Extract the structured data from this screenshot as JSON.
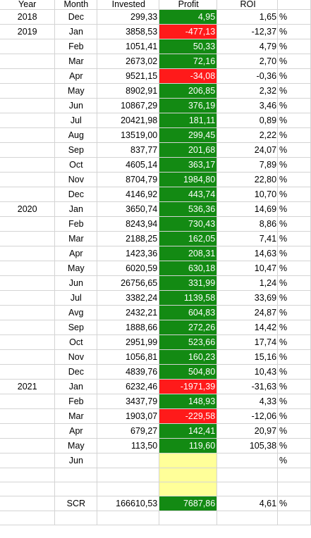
{
  "columns": {
    "year": "Year",
    "month": "Month",
    "invested": "Invested",
    "profit": "Profit",
    "roi": "ROI"
  },
  "colors": {
    "positive": "#138a13",
    "negative": "#ff1a1a",
    "highlight": "#ffff99",
    "grid": "#d4d4d4"
  },
  "rows": [
    {
      "year": "2018",
      "month": "Dec",
      "invested": "299,33",
      "profit": "4,95",
      "roi": "1,65",
      "pct": "%",
      "status": "pos"
    },
    {
      "year": "2019",
      "month": "Jan",
      "invested": "3858,53",
      "profit": "-477,13",
      "roi": "-12,37",
      "pct": "%",
      "status": "neg"
    },
    {
      "year": "",
      "month": "Feb",
      "invested": "1051,41",
      "profit": "50,33",
      "roi": "4,79",
      "pct": "%",
      "status": "pos"
    },
    {
      "year": "",
      "month": "Mar",
      "invested": "2673,02",
      "profit": "72,16",
      "roi": "2,70",
      "pct": "%",
      "status": "pos"
    },
    {
      "year": "",
      "month": "Apr",
      "invested": "9521,15",
      "profit": "-34,08",
      "roi": "-0,36",
      "pct": "%",
      "status": "neg"
    },
    {
      "year": "",
      "month": "May",
      "invested": "8902,91",
      "profit": "206,85",
      "roi": "2,32",
      "pct": "%",
      "status": "pos"
    },
    {
      "year": "",
      "month": "Jun",
      "invested": "10867,29",
      "profit": "376,19",
      "roi": "3,46",
      "pct": "%",
      "status": "pos"
    },
    {
      "year": "",
      "month": "Jul",
      "invested": "20421,98",
      "profit": "181,11",
      "roi": "0,89",
      "pct": "%",
      "status": "pos"
    },
    {
      "year": "",
      "month": "Aug",
      "invested": "13519,00",
      "profit": "299,45",
      "roi": "2,22",
      "pct": "%",
      "status": "pos"
    },
    {
      "year": "",
      "month": "Sep",
      "invested": "837,77",
      "profit": "201,68",
      "roi": "24,07",
      "pct": "%",
      "status": "pos"
    },
    {
      "year": "",
      "month": "Oct",
      "invested": "4605,14",
      "profit": "363,17",
      "roi": "7,89",
      "pct": "%",
      "status": "pos"
    },
    {
      "year": "",
      "month": "Nov",
      "invested": "8704,79",
      "profit": "1984,80",
      "roi": "22,80",
      "pct": "%",
      "status": "pos"
    },
    {
      "year": "",
      "month": "Dec",
      "invested": "4146,92",
      "profit": "443,74",
      "roi": "10,70",
      "pct": "%",
      "status": "pos"
    },
    {
      "year": "2020",
      "month": "Jan",
      "invested": "3650,74",
      "profit": "536,36",
      "roi": "14,69",
      "pct": "%",
      "status": "pos"
    },
    {
      "year": "",
      "month": "Feb",
      "invested": "8243,94",
      "profit": "730,43",
      "roi": "8,86",
      "pct": "%",
      "status": "pos"
    },
    {
      "year": "",
      "month": "Mar",
      "invested": "2188,25",
      "profit": "162,05",
      "roi": "7,41",
      "pct": "%",
      "status": "pos"
    },
    {
      "year": "",
      "month": "Apr",
      "invested": "1423,36",
      "profit": "208,31",
      "roi": "14,63",
      "pct": "%",
      "status": "pos"
    },
    {
      "year": "",
      "month": "May",
      "invested": "6020,59",
      "profit": "630,18",
      "roi": "10,47",
      "pct": "%",
      "status": "pos"
    },
    {
      "year": "",
      "month": "Jun",
      "invested": "26756,65",
      "profit": "331,99",
      "roi": "1,24",
      "pct": "%",
      "status": "pos"
    },
    {
      "year": "",
      "month": "Jul",
      "invested": "3382,24",
      "profit": "1139,58",
      "roi": "33,69",
      "pct": "%",
      "status": "pos"
    },
    {
      "year": "",
      "month": "Avg",
      "invested": "2432,21",
      "profit": "604,83",
      "roi": "24,87",
      "pct": "%",
      "status": "pos"
    },
    {
      "year": "",
      "month": "Sep",
      "invested": "1888,66",
      "profit": "272,26",
      "roi": "14,42",
      "pct": "%",
      "status": "pos"
    },
    {
      "year": "",
      "month": "Oct",
      "invested": "2951,99",
      "profit": "523,66",
      "roi": "17,74",
      "pct": "%",
      "status": "pos"
    },
    {
      "year": "",
      "month": "Nov",
      "invested": "1056,81",
      "profit": "160,23",
      "roi": "15,16",
      "pct": "%",
      "status": "pos"
    },
    {
      "year": "",
      "month": "Dec",
      "invested": "4839,76",
      "profit": "504,80",
      "roi": "10,43",
      "pct": "%",
      "status": "pos"
    },
    {
      "year": "2021",
      "month": "Jan",
      "invested": "6232,46",
      "profit": "-1971,39",
      "roi": "-31,63",
      "pct": "%",
      "status": "neg"
    },
    {
      "year": "",
      "month": "Feb",
      "invested": "3437,79",
      "profit": "148,93",
      "roi": "4,33",
      "pct": "%",
      "status": "pos"
    },
    {
      "year": "",
      "month": "Mar",
      "invested": "1903,07",
      "profit": "-229,58",
      "roi": "-12,06",
      "pct": "%",
      "status": "neg"
    },
    {
      "year": "",
      "month": "Apr",
      "invested": "679,27",
      "profit": "142,41",
      "roi": "20,97",
      "pct": "%",
      "status": "pos"
    },
    {
      "year": "",
      "month": "May",
      "invested": "113,50",
      "profit": "119,60",
      "roi": "105,38",
      "pct": "%",
      "status": "pos"
    },
    {
      "year": "",
      "month": "Jun",
      "invested": "",
      "profit": "",
      "roi": "",
      "pct": "%",
      "status": "hl"
    },
    {
      "year": "",
      "month": "",
      "invested": "",
      "profit": "",
      "roi": "",
      "pct": "",
      "status": "hl"
    },
    {
      "year": "",
      "month": "",
      "invested": "",
      "profit": "",
      "roi": "",
      "pct": "",
      "status": "hl"
    },
    {
      "year": "",
      "month": "SCR",
      "invested": "166610,53",
      "profit": "7687,86",
      "roi": "4,61",
      "pct": "%",
      "status": "pos"
    },
    {
      "year": "",
      "month": "",
      "invested": "",
      "profit": "",
      "roi": "",
      "pct": "",
      "status": ""
    }
  ]
}
